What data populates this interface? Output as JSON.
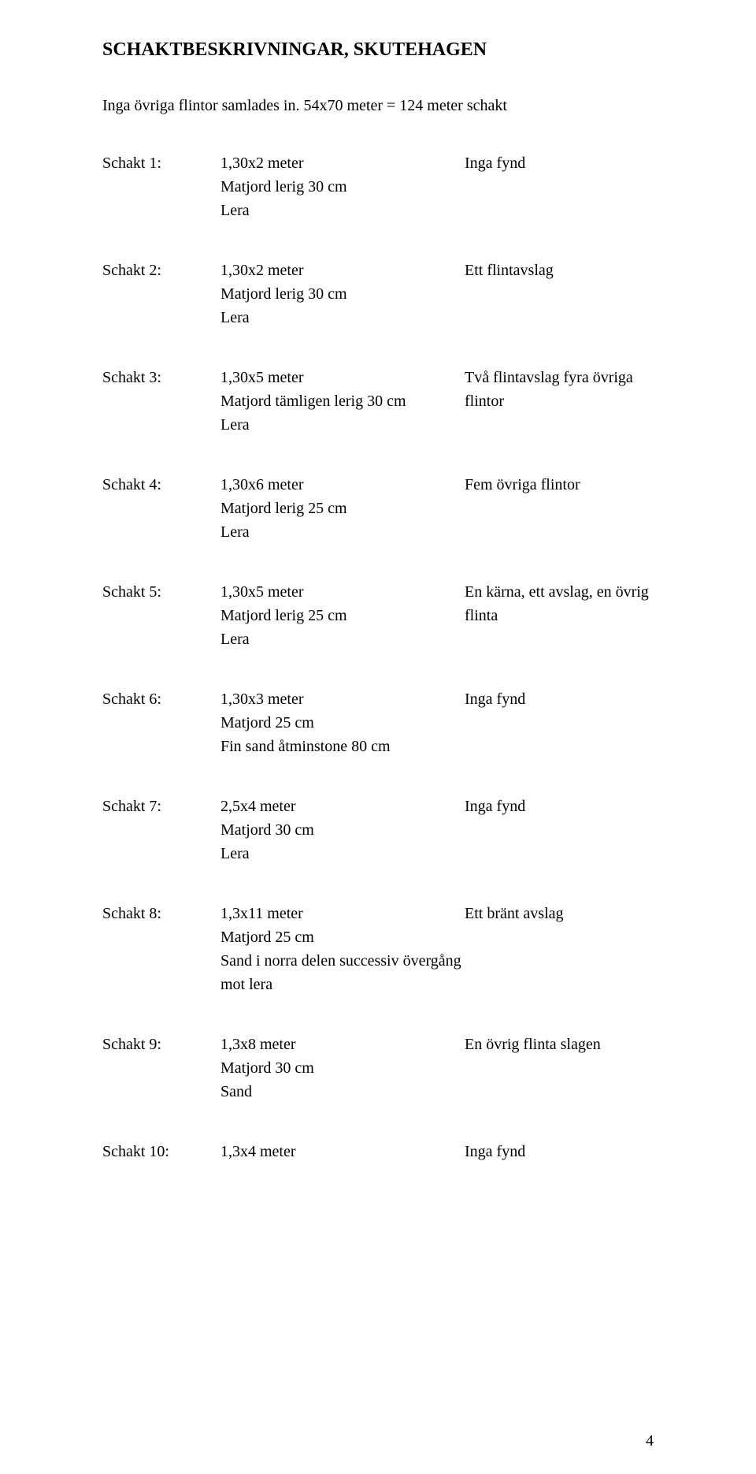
{
  "title": "SCHAKTBESKRIVNINGAR, SKUTEHAGEN",
  "intro": "Inga övriga flintor samlades in. 54x70 meter = 124 meter schakt",
  "schakt": [
    {
      "label": "Schakt 1:",
      "lines": [
        "1,30x2 meter",
        "Matjord lerig 30 cm",
        "Lera"
      ],
      "note": "Inga fynd"
    },
    {
      "label": "Schakt 2:",
      "lines": [
        "1,30x2 meter",
        "Matjord lerig 30 cm",
        "Lera"
      ],
      "note": "Ett flintavslag"
    },
    {
      "label": "Schakt 3:",
      "lines": [
        "1,30x5 meter",
        "Matjord tämligen lerig 30 cm",
        "Lera"
      ],
      "note": "Två flintavslag fyra övriga flintor"
    },
    {
      "label": "Schakt 4:",
      "lines": [
        "1,30x6 meter",
        "Matjord lerig 25 cm",
        "Lera"
      ],
      "note": "Fem övriga flintor"
    },
    {
      "label": "Schakt 5:",
      "lines": [
        "1,30x5 meter",
        "Matjord lerig 25 cm",
        "Lera"
      ],
      "note": "En kärna, ett avslag, en övrig flinta"
    },
    {
      "label": "Schakt 6:",
      "lines": [
        "1,30x3 meter",
        "Matjord 25 cm",
        "Fin sand åtminstone 80 cm"
      ],
      "note": "Inga fynd"
    },
    {
      "label": "Schakt 7:",
      "lines": [
        "2,5x4 meter",
        "Matjord 30 cm",
        "Lera"
      ],
      "note": "Inga fynd"
    },
    {
      "label": "Schakt 8:",
      "lines": [
        "1,3x11 meter",
        "Matjord 25 cm",
        "Sand i norra delen successiv övergång mot lera"
      ],
      "note": "Ett bränt avslag"
    },
    {
      "label": "Schakt 9:",
      "lines": [
        "1,3x8 meter",
        "Matjord 30 cm",
        "Sand"
      ],
      "note": "En övrig flinta slagen"
    },
    {
      "label": "Schakt 10:",
      "lines": [
        "1,3x4 meter"
      ],
      "note": "Inga fynd"
    }
  ],
  "pageNumber": "4"
}
